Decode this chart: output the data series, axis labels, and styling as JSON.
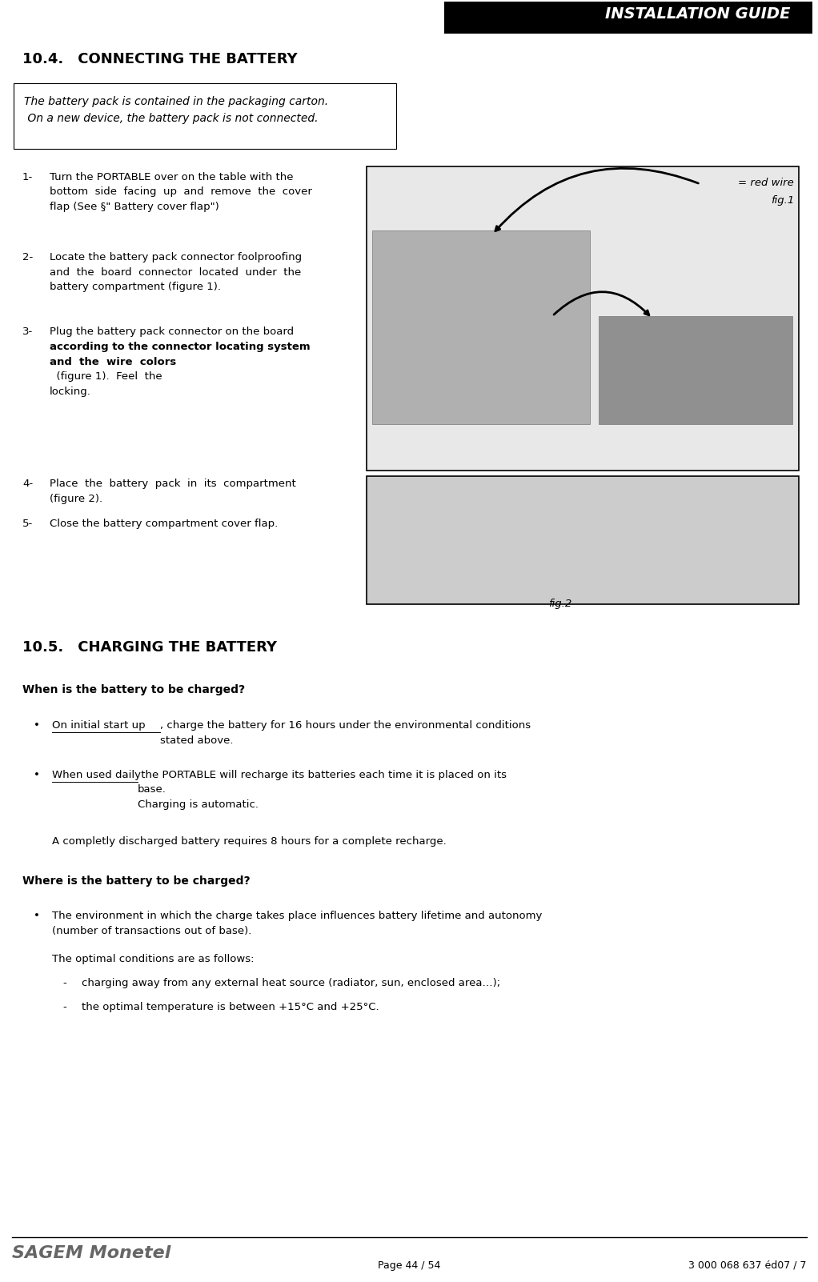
{
  "page_width": 10.22,
  "page_height": 16.02,
  "bg_color": "#ffffff",
  "header_bg": "#000000",
  "header_text": "INSTALLATION GUIDE",
  "header_text_color": "#ffffff",
  "header_font_size": 14,
  "section1_title": "10.4. CONNECTING THE BATTERY",
  "section1_title_size": 13,
  "italic_note_line1": "The battery pack is contained in the packaging carton.",
  "italic_note_line2": " On a new device, the battery pack is not connected.",
  "italic_note_size": 10,
  "step1_text": "Turn the PORTABLE over on the table with the\nbottom  side  facing  up  and  remove  the  cover\nflap (See §\" Battery cover flap\")",
  "step2_text": "Locate the battery pack connector foolproofing\nand  the  board  connector  located  under  the\nbattery compartment (figure 1).",
  "step3_text_normal": "Plug the battery pack connector on the board",
  "step3_text_bold": "according to the connector locating system\nand  the  wire  colors",
  "step3_text_end": "  (figure 1).  Feel  the\nlocking.",
  "step4_text": "Place  the  battery  pack  in  its  compartment\n(figure 2).",
  "step5_text": "Close the battery compartment cover flap.",
  "fig1_red_wire": "= red wire",
  "fig1_label": "fig.1",
  "fig2_label": "fig.2",
  "section2_title": "10.5. CHARGING THE BATTERY",
  "section2_title_size": 13,
  "when_bold": "When is the battery to be charged?",
  "bullet1_underline": "On initial start up",
  "bullet1_rest": ", charge the battery for 16 hours under the environmental conditions\nstated above.",
  "bullet2_underline": "When used daily",
  "bullet2_rest": " the PORTABLE will recharge its batteries each time it is placed on its\nbase.\nCharging is automatic.",
  "extra_note": "A completly discharged battery requires 8 hours for a complete recharge.",
  "where_bold": "Where is the battery to be charged?",
  "env_bullet": "The environment in which the charge takes place influences battery lifetime and autonomy\n(number of transactions out of base).",
  "optimal_intro": "The optimal conditions are as follows:",
  "dash1": "charging away from any external heat source (radiator, sun, enclosed area…);",
  "dash2": "the optimal temperature is between +15°C and +25°C.",
  "footer_brand": "SAGEM Monetel",
  "footer_page": "Page 44 / 54",
  "footer_ref": "3 000 068 637 éd07 / 7",
  "footer_line_color": "#000000",
  "body_font_size": 9.5,
  "step_font_size": 9.5
}
